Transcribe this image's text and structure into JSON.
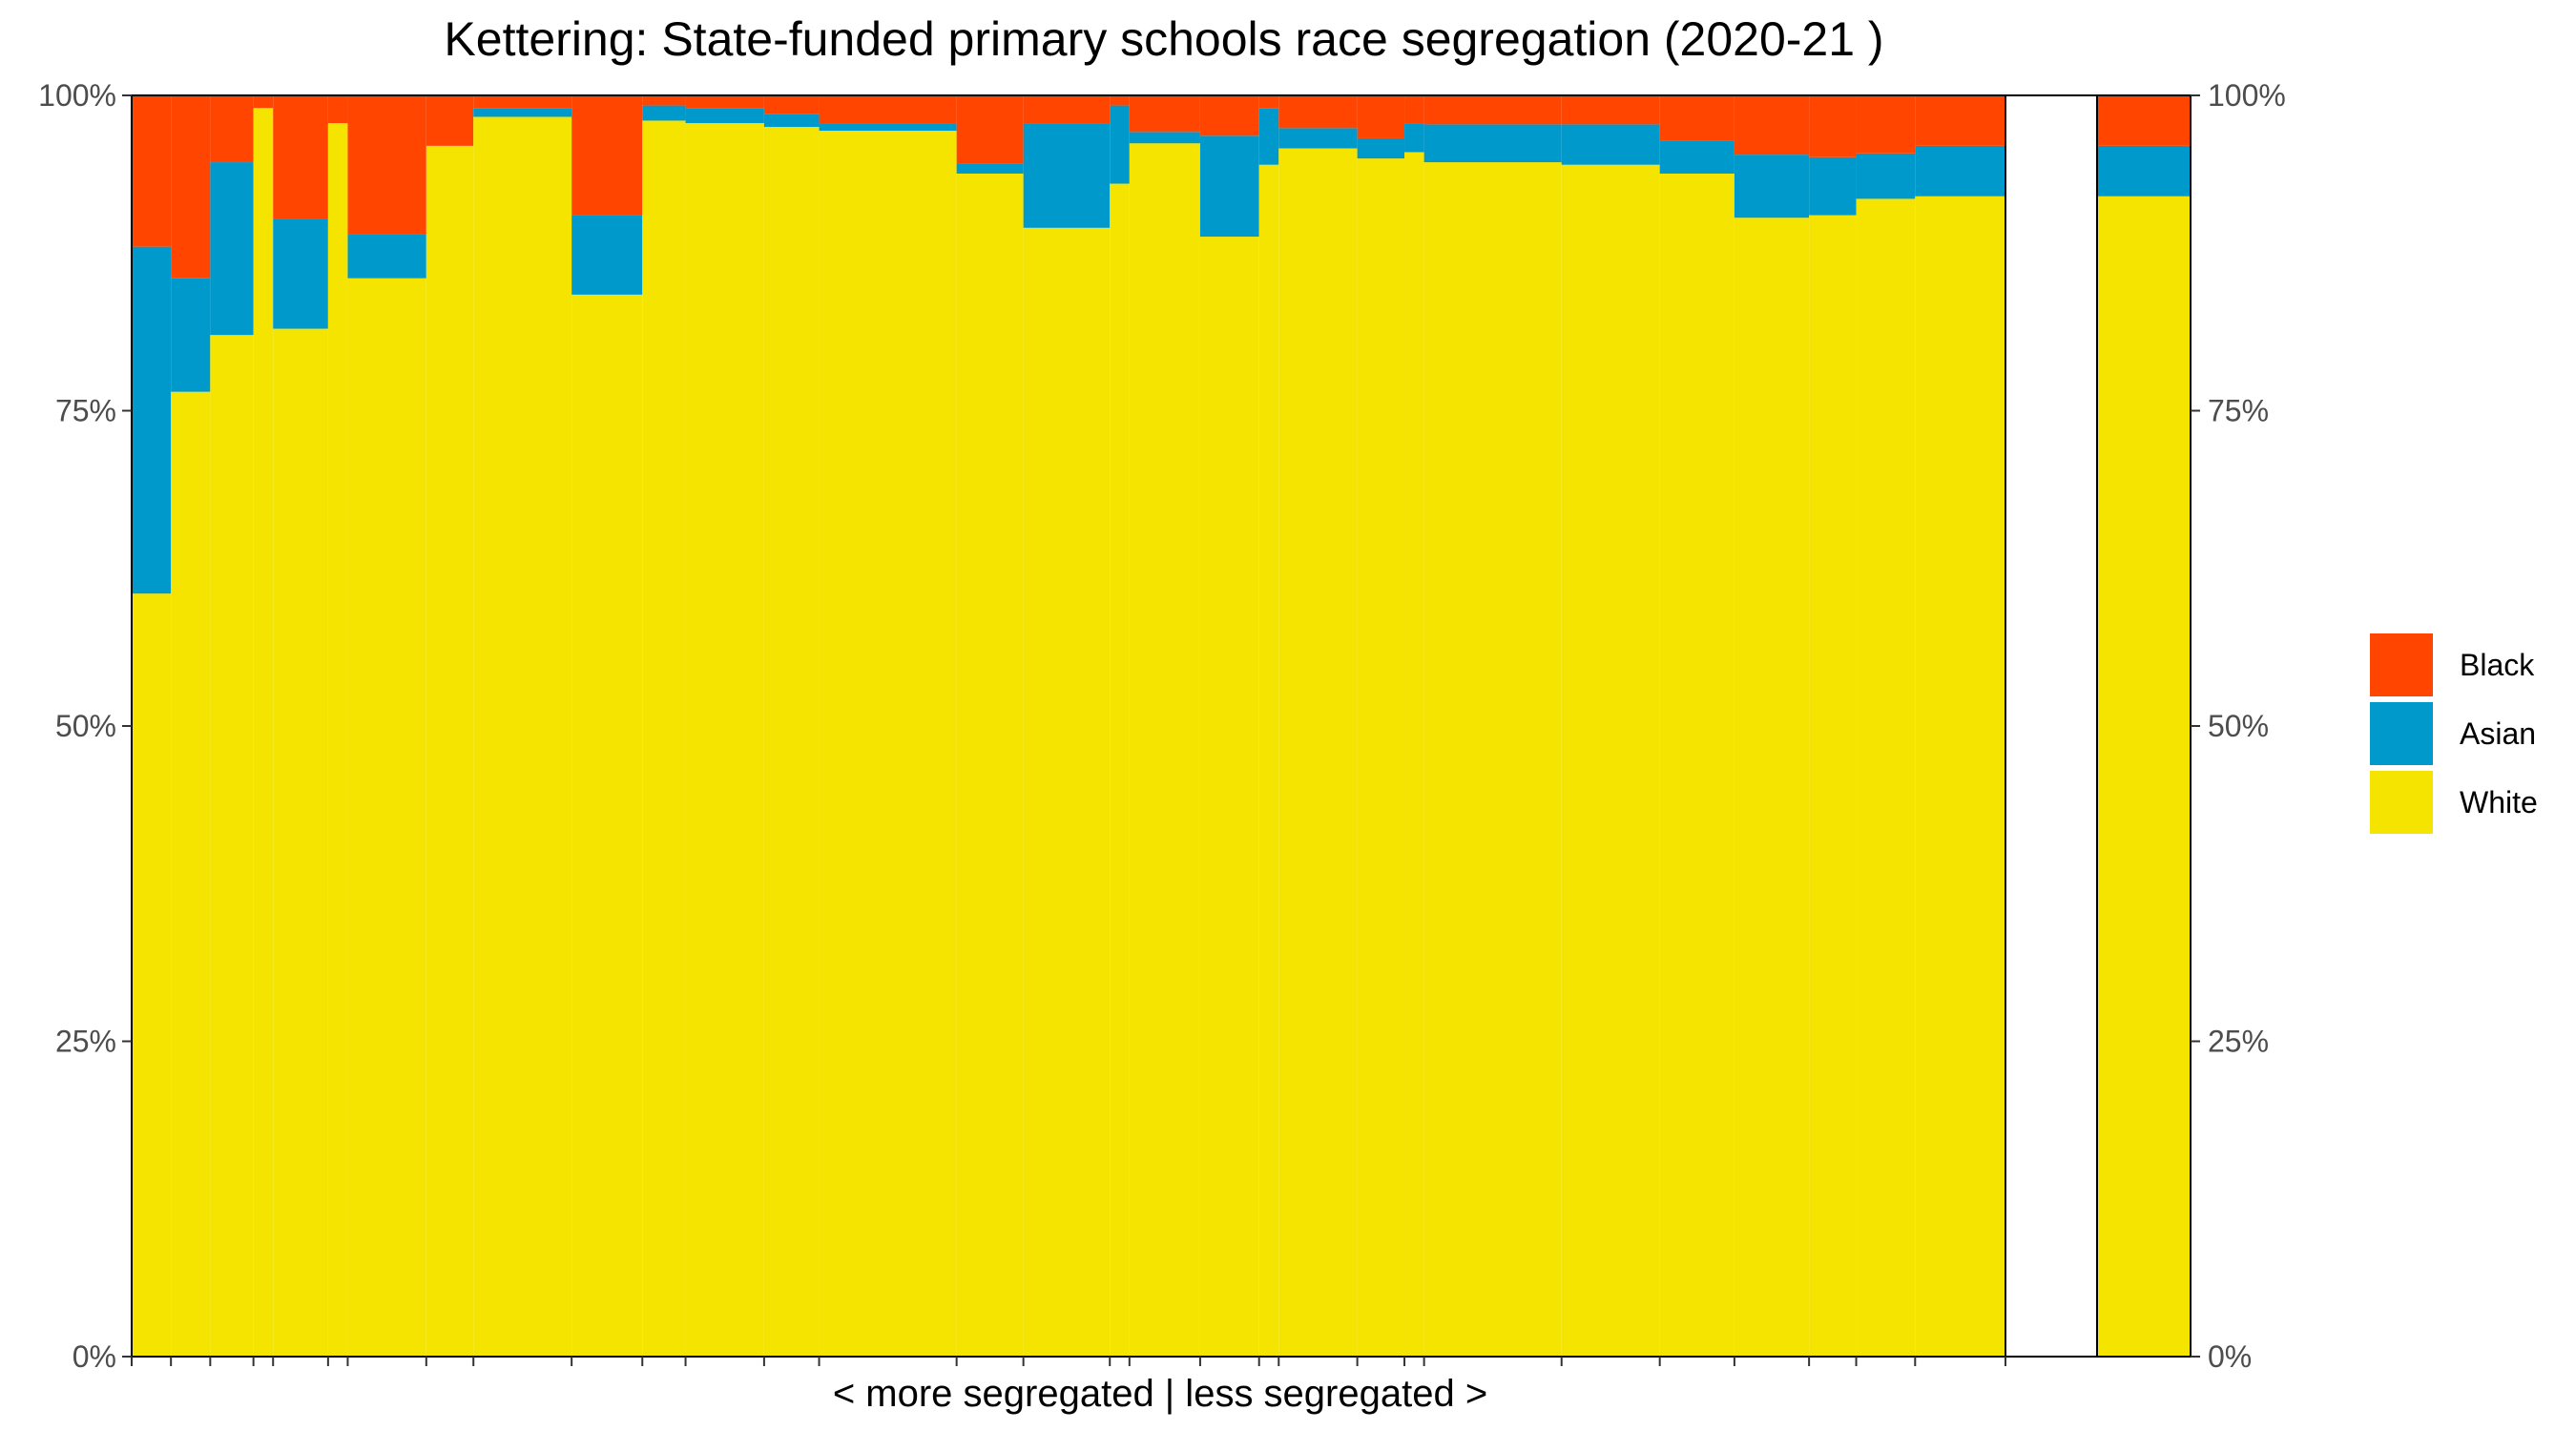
{
  "chart_data": {
    "type": "bar",
    "title": "Kettering: State-funded primary schools race segregation (2020-21 )",
    "xlabel": "< more segregated | less segregated >",
    "ylabel": "",
    "ylim": [
      0,
      100
    ],
    "y_ticks": [
      "0%",
      "25%",
      "50%",
      "75%",
      "100%"
    ],
    "grid": false,
    "legend_position": "right",
    "colors": {
      "Black": "#FF4500",
      "Asian": "#0099CC",
      "White": "#F5E400"
    },
    "series": [
      {
        "name": "Black"
      },
      {
        "name": "Asian"
      },
      {
        "name": "White"
      }
    ],
    "schools": [
      {
        "white": 60.5,
        "asian": 27.5,
        "black": 12.0,
        "relative_width": 1.0
      },
      {
        "white": 76.5,
        "asian": 9.0,
        "black": 14.5,
        "relative_width": 1.0
      },
      {
        "white": 81.0,
        "asian": 13.7,
        "black": 5.3,
        "relative_width": 1.1
      },
      {
        "white": 99.0,
        "asian": 0.0,
        "black": 1.0,
        "relative_width": 0.5
      },
      {
        "white": 81.5,
        "asian": 8.7,
        "black": 9.8,
        "relative_width": 1.4
      },
      {
        "white": 97.8,
        "asian": 0.0,
        "black": 2.2,
        "relative_width": 0.5
      },
      {
        "white": 85.5,
        "asian": 3.5,
        "black": 11.0,
        "relative_width": 2.0
      },
      {
        "white": 96.0,
        "asian": 0.0,
        "black": 4.0,
        "relative_width": 1.2
      },
      {
        "white": 98.3,
        "asian": 0.7,
        "black": 1.0,
        "relative_width": 2.5
      },
      {
        "white": 84.2,
        "asian": 6.3,
        "black": 9.5,
        "relative_width": 1.8
      },
      {
        "white": 98.0,
        "asian": 1.2,
        "black": 0.8,
        "relative_width": 1.1
      },
      {
        "white": 97.8,
        "asian": 1.2,
        "black": 1.0,
        "relative_width": 2.0
      },
      {
        "white": 97.5,
        "asian": 1.0,
        "black": 1.5,
        "relative_width": 1.4
      },
      {
        "white": 97.2,
        "asian": 0.6,
        "black": 2.2,
        "relative_width": 3.5
      },
      {
        "white": 93.8,
        "asian": 0.8,
        "black": 5.4,
        "relative_width": 1.7
      },
      {
        "white": 89.5,
        "asian": 8.3,
        "black": 2.2,
        "relative_width": 2.2
      },
      {
        "white": 93.0,
        "asian": 6.2,
        "black": 0.8,
        "relative_width": 0.5
      },
      {
        "white": 96.2,
        "asian": 0.9,
        "black": 2.9,
        "relative_width": 1.8
      },
      {
        "white": 88.8,
        "asian": 8.0,
        "black": 3.2,
        "relative_width": 1.5
      },
      {
        "white": 94.5,
        "asian": 4.5,
        "black": 1.0,
        "relative_width": 0.5
      },
      {
        "white": 95.8,
        "asian": 1.6,
        "black": 2.6,
        "relative_width": 2.0
      },
      {
        "white": 95.0,
        "asian": 1.6,
        "black": 3.4,
        "relative_width": 1.2
      },
      {
        "white": 95.5,
        "asian": 2.3,
        "black": 2.2,
        "relative_width": 0.5
      },
      {
        "white": 94.7,
        "asian": 3.0,
        "black": 2.3,
        "relative_width": 3.5
      },
      {
        "white": 94.5,
        "asian": 3.2,
        "black": 2.3,
        "relative_width": 2.5
      },
      {
        "white": 93.8,
        "asian": 2.6,
        "black": 3.6,
        "relative_width": 1.9
      },
      {
        "white": 90.3,
        "asian": 5.0,
        "black": 4.7,
        "relative_width": 1.9
      },
      {
        "white": 90.5,
        "asian": 4.6,
        "black": 4.9,
        "relative_width": 1.2
      },
      {
        "white": 91.8,
        "asian": 3.6,
        "black": 4.6,
        "relative_width": 1.5
      },
      {
        "white": 92.0,
        "asian": 4.0,
        "black": 4.0,
        "relative_width": 2.3
      }
    ],
    "overall": {
      "white": 92.0,
      "asian": 4.0,
      "black": 4.0
    }
  }
}
